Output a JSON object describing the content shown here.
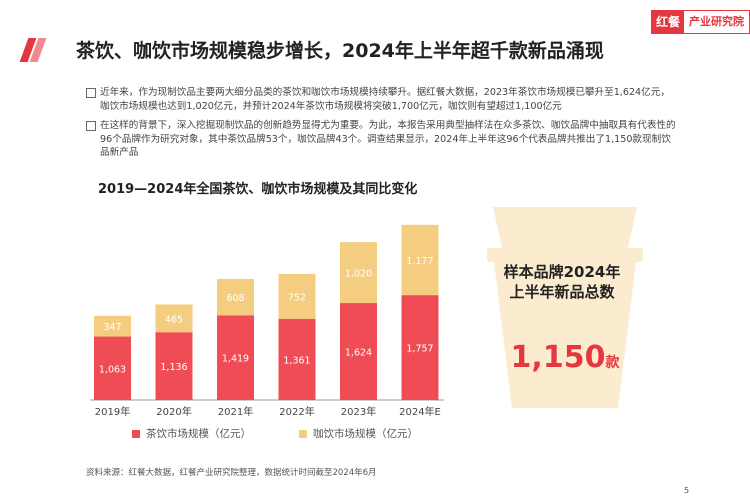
{
  "logo": {
    "mark": "红餐",
    "text": "产业研究院"
  },
  "title": "茶饮、咖饮市场规模稳步增长，2024年上半年超千款新品涌现",
  "bullets": [
    "近年来，作为现制饮品主要两大细分品类的茶饮和咖饮市场规模持续攀升。据红餐大数据，2023年茶饮市场规模已攀升至1,624亿元，咖饮市场规模也达到1,020亿元，并预计2024年茶饮市场规模将突破1,700亿元，咖饮则有望超过1,100亿元",
    "在这样的背景下，深入挖掘现制饮品的创新趋势显得尤为重要。为此，本报告采用典型抽样法在众多茶饮、咖饮品牌中抽取具有代表性的96个品牌作为研究对象，其中茶饮品牌53个，咖饮品牌43个。调查结果显示，2024年上半年这96个代表品牌共推出了1,150款现制饮品新产品"
  ],
  "chart_data": {
    "type": "bar",
    "stacked": true,
    "title": "2019—2024年全国茶饮、咖饮市场规模及其同比变化",
    "categories": [
      "2019年",
      "2020年",
      "2021年",
      "2022年",
      "2023年",
      "2024年E"
    ],
    "series": [
      {
        "name": "茶饮市场规模（亿元）",
        "values": [
          1063,
          1136,
          1419,
          1361,
          1624,
          1757
        ],
        "color": "#ef4c56"
      },
      {
        "name": "咖饮市场规模（亿元）",
        "values": [
          347,
          465,
          608,
          752,
          1020,
          1177
        ],
        "color": "#f4cd80"
      }
    ],
    "data_labels": {
      "tea": [
        "1,063",
        "1,136",
        "1,419",
        "1,361",
        "1,624",
        "1,757"
      ],
      "coffee": [
        "347",
        "465",
        "608",
        "752",
        "1,020",
        "1,177"
      ]
    },
    "legend_position": "bottom",
    "grid": false
  },
  "highlight": {
    "label_line1": "样本品牌2024年",
    "label_line2": "上半年新品总数",
    "number": "1,150",
    "unit": "款"
  },
  "source": "资料来源：红餐大数据，红餐产业研究院整理，数据统计时间截至2024年6月",
  "page_number": "5",
  "colors": {
    "accent": "#e5373f",
    "tea": "#ef4c56",
    "coffee": "#f4cd80",
    "cup": "#fbecd0"
  }
}
